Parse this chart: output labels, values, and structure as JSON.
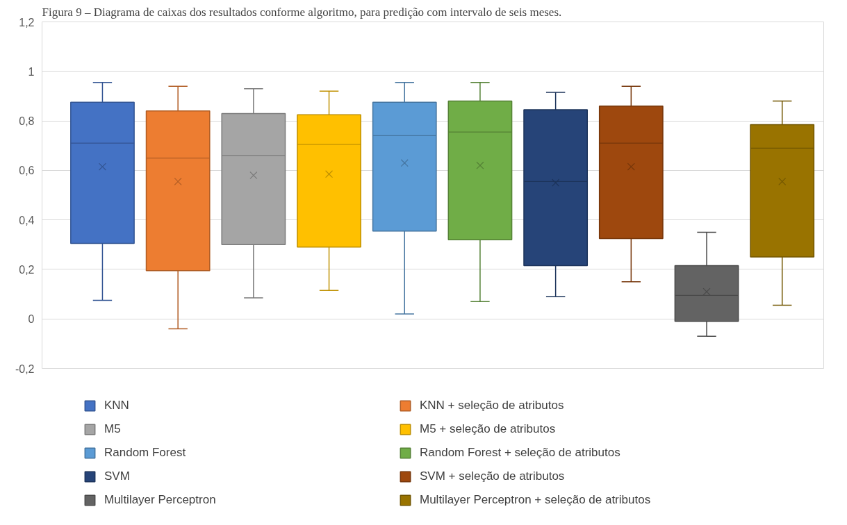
{
  "chart_data": {
    "type": "box",
    "title": "Figura 9 – Diagrama de caixas dos resultados conforme algoritmo, para predição com intervalo de seis meses.",
    "categories": [
      null
    ],
    "ylim": [
      -0.2,
      1.2
    ],
    "yticks": [
      {
        "value": -0.2,
        "label": "-0,2"
      },
      0,
      {
        "value": 0.2,
        "label": "0,2"
      },
      {
        "value": 0.4,
        "label": "0,4"
      },
      {
        "value": 0.6,
        "label": "0,6"
      },
      {
        "value": 0.8,
        "label": "0,8"
      },
      1,
      {
        "value": 1.2,
        "label": "1,2"
      }
    ],
    "grid": "y",
    "legend": "bottom",
    "tick_labels": "y",
    "series": [
      {
        "name": "KNN",
        "color": "#4472c4",
        "boxes": [
          {
            "low": 0.075,
            "q1": 0.305,
            "median": 0.71,
            "q3": 0.875,
            "high": 0.955,
            "mean": 0.615
          }
        ]
      },
      {
        "name": "KNN + seleção de atributos",
        "color": "#ed7d31",
        "boxes": [
          {
            "low": -0.04,
            "q1": 0.195,
            "median": 0.65,
            "q3": 0.84,
            "high": 0.94,
            "mean": 0.555
          }
        ]
      },
      {
        "name": "M5",
        "color": "#a5a5a5",
        "boxes": [
          {
            "low": 0.085,
            "q1": 0.3,
            "median": 0.66,
            "q3": 0.83,
            "high": 0.93,
            "mean": 0.58
          }
        ]
      },
      {
        "name": "M5 + seleção de atributos",
        "color": "#ffc000",
        "boxes": [
          {
            "low": 0.115,
            "q1": 0.29,
            "median": 0.705,
            "q3": 0.825,
            "high": 0.92,
            "mean": 0.585
          }
        ]
      },
      {
        "name": "Random Forest",
        "color": "#5b9bd5",
        "boxes": [
          {
            "low": 0.02,
            "q1": 0.355,
            "median": 0.74,
            "q3": 0.875,
            "high": 0.955,
            "mean": 0.63
          }
        ]
      },
      {
        "name": "Random Forest + seleção de atributos",
        "color": "#70ad47",
        "boxes": [
          {
            "low": 0.07,
            "q1": 0.32,
            "median": 0.755,
            "q3": 0.88,
            "high": 0.955,
            "mean": 0.62
          }
        ]
      },
      {
        "name": "SVM",
        "color": "#264478",
        "boxes": [
          {
            "low": 0.09,
            "q1": 0.215,
            "median": 0.555,
            "q3": 0.845,
            "high": 0.915,
            "mean": 0.55
          }
        ]
      },
      {
        "name": "SVM + seleção de atributos",
        "color": "#9e480e",
        "boxes": [
          {
            "low": 0.15,
            "q1": 0.325,
            "median": 0.71,
            "q3": 0.86,
            "high": 0.94,
            "mean": 0.615
          }
        ]
      },
      {
        "name": "Multilayer Perceptron",
        "color": "#636363",
        "boxes": [
          {
            "low": -0.07,
            "q1": -0.01,
            "median": 0.095,
            "q3": 0.215,
            "high": 0.35,
            "mean": 0.11
          }
        ]
      },
      {
        "name": "Multilayer Perceptron + seleção de atributos",
        "color": "#997300",
        "boxes": [
          {
            "low": 0.055,
            "q1": 0.25,
            "median": 0.69,
            "q3": 0.785,
            "high": 0.88,
            "mean": 0.555
          }
        ]
      }
    ]
  }
}
